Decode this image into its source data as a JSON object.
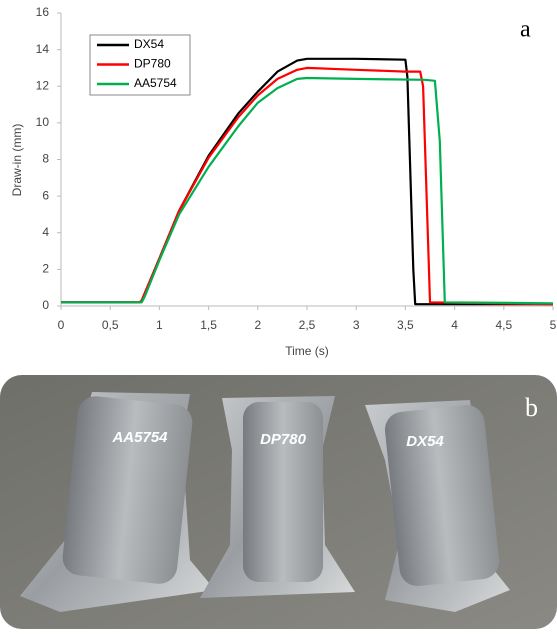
{
  "chart_data": {
    "type": "line",
    "panel_label": "a",
    "xlabel": "Time (s)",
    "ylabel": "Draw-in (mm)",
    "xlim": [
      0,
      5
    ],
    "ylim": [
      0,
      16
    ],
    "xticks": [
      0,
      {
        "value": 0.5,
        "label": "0,5"
      },
      1,
      {
        "value": 1.5,
        "label": "1,5"
      },
      2,
      {
        "value": 2.5,
        "label": "2,5"
      },
      3,
      {
        "value": 3.5,
        "label": "3,5"
      },
      4,
      {
        "value": 4.5,
        "label": "4,5"
      },
      5
    ],
    "yticks": [
      0,
      2,
      4,
      6,
      8,
      10,
      12,
      14,
      16
    ],
    "grid": false,
    "legend": "top-left",
    "series": [
      {
        "name": "DX54",
        "color": "#000000",
        "x": [
          0,
          0.8,
          0.82,
          1.0,
          1.2,
          1.5,
          1.8,
          2.0,
          2.2,
          2.4,
          2.5,
          3.0,
          3.5,
          3.52,
          3.58,
          3.6,
          5
        ],
        "values": [
          0.2,
          0.2,
          0.3,
          2.6,
          5.2,
          8.2,
          10.5,
          11.7,
          12.8,
          13.4,
          13.5,
          13.5,
          13.45,
          12.5,
          2,
          0.1,
          0.1
        ]
      },
      {
        "name": "DP780",
        "color": "#ff0000",
        "x": [
          0,
          0.8,
          0.82,
          1.0,
          1.2,
          1.5,
          1.8,
          2.0,
          2.2,
          2.4,
          2.5,
          3.0,
          3.5,
          3.65,
          3.68,
          3.75,
          5
        ],
        "values": [
          0.2,
          0.2,
          0.3,
          2.6,
          5.2,
          8.1,
          10.3,
          11.5,
          12.4,
          12.9,
          13.0,
          12.9,
          12.8,
          12.8,
          12.0,
          0.2,
          0.1
        ]
      },
      {
        "name": "AA5754",
        "color": "#00b050",
        "x": [
          0,
          0.82,
          0.85,
          1.0,
          1.2,
          1.5,
          1.8,
          2.0,
          2.2,
          2.4,
          2.5,
          3.0,
          3.7,
          3.8,
          3.85,
          3.9,
          5
        ],
        "values": [
          0.2,
          0.2,
          0.5,
          2.5,
          5.0,
          7.6,
          9.8,
          11.1,
          11.9,
          12.4,
          12.45,
          12.4,
          12.35,
          12.3,
          9,
          0.2,
          0.15
        ]
      }
    ]
  },
  "photo": {
    "panel_label": "b",
    "parts": [
      "AA5754",
      "DP780",
      "DX54"
    ]
  }
}
